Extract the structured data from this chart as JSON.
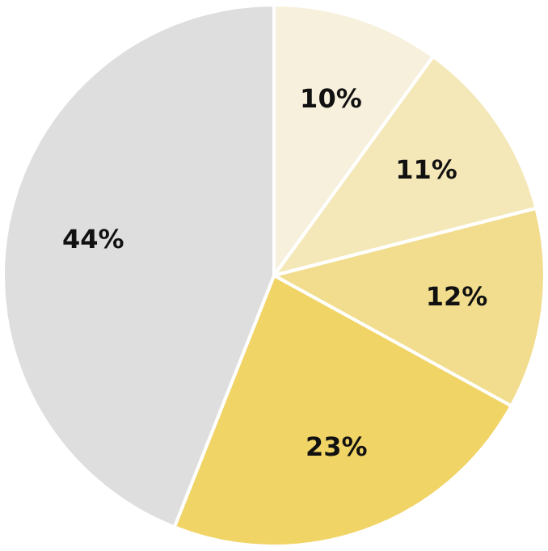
{
  "chart_data": {
    "type": "pie",
    "categories": [
      null,
      null,
      null,
      null,
      null
    ],
    "values": [
      10,
      11,
      12,
      23,
      44
    ],
    "colors": [
      "#f7f0dc",
      "#f5e8b8",
      "#f1dd8d",
      "#f0d466",
      "#dedede"
    ],
    "value_labels": [
      "10%",
      "11%",
      "12%",
      "23%",
      "44%"
    ],
    "legend": false
  }
}
